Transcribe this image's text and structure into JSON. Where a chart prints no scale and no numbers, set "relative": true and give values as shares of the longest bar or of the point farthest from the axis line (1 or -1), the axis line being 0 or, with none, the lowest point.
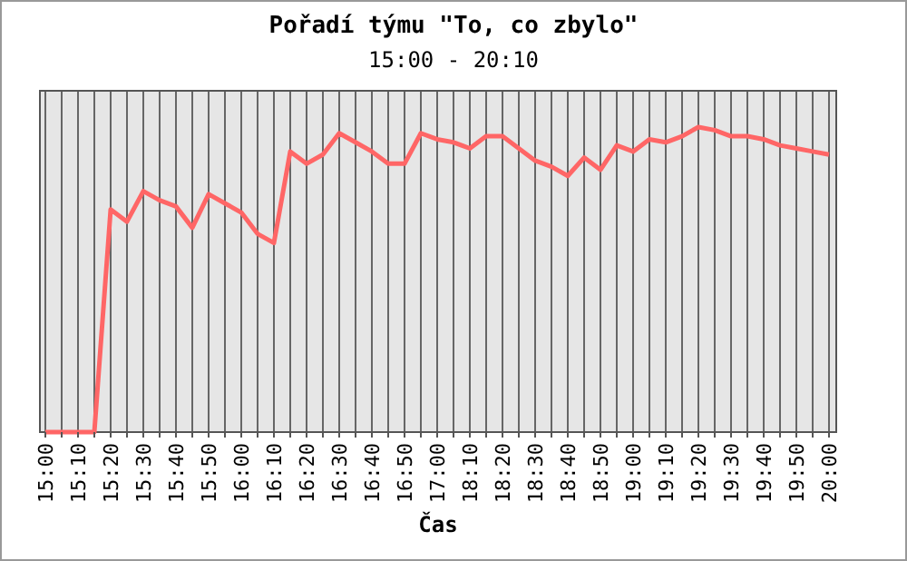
{
  "chart_data": {
    "type": "line",
    "title": "Pořadí týmu \"To, co zbylo\"",
    "subtitle": "15:00 - 20:10",
    "xlabel": "Čas",
    "categories": [
      "15:00",
      null,
      "15:10",
      null,
      "15:20",
      null,
      "15:30",
      null,
      "15:40",
      null,
      "15:50",
      null,
      "16:00",
      null,
      "16:10",
      null,
      "16:20",
      null,
      "16:30",
      null,
      "16:40",
      null,
      "16:50",
      null,
      "17:00",
      null,
      "18:10",
      null,
      "18:20",
      null,
      "18:30",
      null,
      "18:40",
      null,
      "18:50",
      null,
      "19:00",
      null,
      "19:10",
      null,
      "19:20",
      null,
      "19:30",
      null,
      "19:40",
      null,
      "19:50",
      null,
      "20:00"
    ],
    "series": [
      {
        "color": "#ff6666",
        "values": [
          0,
          0,
          0,
          0,
          0.73,
          0.69,
          0.79,
          0.76,
          0.74,
          0.67,
          0.78,
          0.75,
          0.72,
          0.65,
          0.62,
          0.92,
          0.88,
          0.91,
          0.98,
          0.95,
          0.92,
          0.88,
          0.88,
          0.98,
          0.96,
          0.95,
          0.93,
          0.97,
          0.97,
          0.93,
          0.89,
          0.87,
          0.84,
          0.9,
          0.86,
          0.94,
          0.92,
          0.96,
          0.95,
          0.97,
          1,
          0.99,
          0.97,
          0.97,
          0.96,
          0.94,
          0.93,
          0.92,
          0.91
        ]
      }
    ],
    "relative": true,
    "grid": "x",
    "marker": "none",
    "line_style": "solid"
  }
}
